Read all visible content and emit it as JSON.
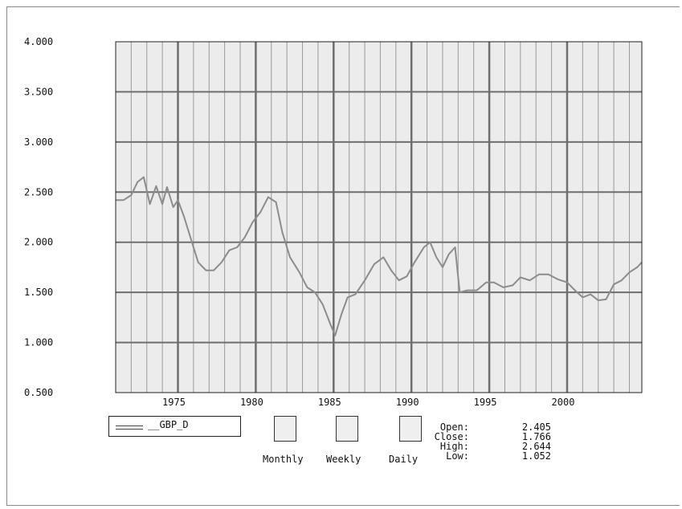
{
  "chart_data": {
    "type": "line",
    "title": "",
    "xlabel": "",
    "ylabel": "",
    "ylim": [
      0.5,
      4.0
    ],
    "xlim": [
      1971.0,
      2004.8
    ],
    "y_ticks": [
      "4.000",
      "3.500",
      "3.000",
      "2.500",
      "2.000",
      "1.500",
      "1.000",
      "0.500"
    ],
    "x_ticks": [
      "1975",
      "1980",
      "1985",
      "1990",
      "1995",
      "2000"
    ],
    "grid": true,
    "legend": "bottom-left",
    "series": [
      {
        "name": "__GBP_D",
        "color": "#8c8c8c",
        "x": [
          1971.0,
          1971.5,
          1972.0,
          1972.4,
          1972.8,
          1973.2,
          1973.6,
          1974.0,
          1974.3,
          1974.7,
          1975.0,
          1975.4,
          1975.8,
          1976.3,
          1976.8,
          1977.3,
          1977.8,
          1978.3,
          1978.8,
          1979.3,
          1979.8,
          1980.3,
          1980.8,
          1981.3,
          1981.7,
          1982.2,
          1982.8,
          1983.3,
          1983.8,
          1984.3,
          1984.8,
          1985.1,
          1985.5,
          1985.9,
          1986.4,
          1987.0,
          1987.6,
          1988.2,
          1988.7,
          1989.2,
          1989.7,
          1990.2,
          1990.8,
          1991.2,
          1991.6,
          1992.0,
          1992.4,
          1992.8,
          1993.1,
          1993.6,
          1994.2,
          1994.8,
          1995.3,
          1995.9,
          1996.5,
          1997.0,
          1997.6,
          1998.2,
          1998.8,
          1999.4,
          2000.0,
          2000.5,
          2001.0,
          2001.5,
          2002.0,
          2002.5,
          2003.0,
          2003.5,
          2004.0,
          2004.5,
          2004.8
        ],
        "y": [
          2.42,
          2.42,
          2.47,
          2.6,
          2.65,
          2.38,
          2.56,
          2.38,
          2.55,
          2.35,
          2.42,
          2.25,
          2.05,
          1.8,
          1.72,
          1.72,
          1.8,
          1.92,
          1.95,
          2.05,
          2.2,
          2.3,
          2.45,
          2.4,
          2.1,
          1.85,
          1.7,
          1.55,
          1.5,
          1.38,
          1.18,
          1.07,
          1.28,
          1.45,
          1.48,
          1.62,
          1.78,
          1.85,
          1.72,
          1.62,
          1.66,
          1.8,
          1.95,
          2.0,
          1.85,
          1.75,
          1.88,
          1.95,
          1.5,
          1.52,
          1.52,
          1.6,
          1.6,
          1.55,
          1.57,
          1.65,
          1.62,
          1.68,
          1.68,
          1.63,
          1.6,
          1.52,
          1.45,
          1.48,
          1.42,
          1.43,
          1.58,
          1.62,
          1.7,
          1.75,
          1.8
        ]
      }
    ]
  },
  "controls": {
    "monthly_label": "Monthly",
    "weekly_label": "Weekly",
    "daily_label": "Daily"
  },
  "stats": {
    "open_label": "Open:",
    "open_value": "2.405",
    "close_label": "Close:",
    "close_value": "1.766",
    "high_label": "High:",
    "high_value": "2.644",
    "low_label": "Low:",
    "low_value": "1.052"
  }
}
